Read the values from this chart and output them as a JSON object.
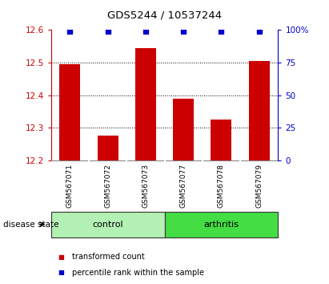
{
  "title": "GDS5244 / 10537244",
  "samples": [
    "GSM567071",
    "GSM567072",
    "GSM567073",
    "GSM567077",
    "GSM567078",
    "GSM567079"
  ],
  "bar_values": [
    12.495,
    12.275,
    12.545,
    12.39,
    12.325,
    12.505
  ],
  "percentile_values": [
    99,
    99,
    99,
    99,
    99,
    99
  ],
  "bar_color": "#cc0000",
  "percentile_color": "#0000cc",
  "ylim_left": [
    12.2,
    12.6
  ],
  "ylim_right": [
    0,
    100
  ],
  "yticks_left": [
    12.2,
    12.3,
    12.4,
    12.5,
    12.6
  ],
  "yticks_right": [
    0,
    25,
    50,
    75,
    100
  ],
  "ytick_right_labels": [
    "0",
    "25",
    "50",
    "75",
    "100%"
  ],
  "groups": [
    {
      "label": "control",
      "indices": [
        0,
        1,
        2
      ],
      "color": "#b3f0b3"
    },
    {
      "label": "arthritis",
      "indices": [
        3,
        4,
        5
      ],
      "color": "#44dd44"
    }
  ],
  "group_label_prefix": "disease state",
  "legend_items": [
    {
      "label": "transformed count",
      "color": "#cc0000"
    },
    {
      "label": "percentile rank within the sample",
      "color": "#0000cc"
    }
  ],
  "background_color": "#ffffff",
  "plot_bg_color": "#ffffff",
  "sample_bg_color": "#cccccc",
  "tick_label_color_left": "#cc0000",
  "tick_label_color_right": "#0000cc",
  "grid_yticks": [
    12.3,
    12.4,
    12.5
  ],
  "bar_width": 0.55
}
